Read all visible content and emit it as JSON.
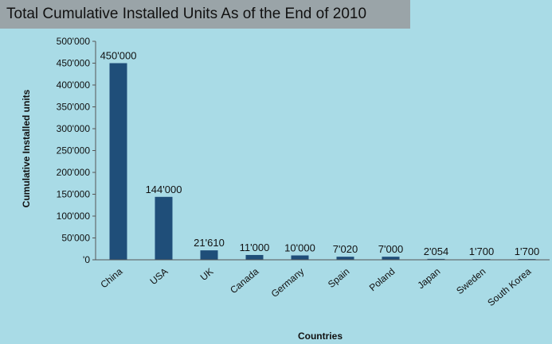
{
  "chart_data": {
    "type": "bar",
    "title": "Total Cumulative Installed Units As of the End of 2010",
    "xlabel": "Countries",
    "ylabel": "Cumulative Installed units",
    "categories": [
      "China",
      "USA",
      "UK",
      "Canada",
      "Germany",
      "Spain",
      "Poland",
      "Japan",
      "Sweden",
      "South Korea"
    ],
    "values": [
      450000,
      144000,
      21610,
      11000,
      10000,
      7020,
      7000,
      2054,
      1700,
      1700
    ],
    "data_labels": [
      "450'000",
      "144'000",
      "21'610",
      "11'000",
      "10'000",
      "7'020",
      "7'000",
      "2'054",
      "1'700",
      "1'700"
    ],
    "ylim": [
      0,
      500000
    ],
    "yticks": [
      0,
      50000,
      100000,
      150000,
      200000,
      250000,
      300000,
      350000,
      400000,
      450000,
      500000
    ],
    "ytick_labels": [
      "'0",
      "50'000",
      "100'000",
      "150'000",
      "200'000",
      "250'000",
      "300'000",
      "350'000",
      "400'000",
      "450'000",
      "500'000"
    ],
    "grid": false,
    "legend": "none",
    "bar_color": "#1f4e79",
    "background_color": "#a9dbe6",
    "title_background": "#9aa4a8"
  }
}
